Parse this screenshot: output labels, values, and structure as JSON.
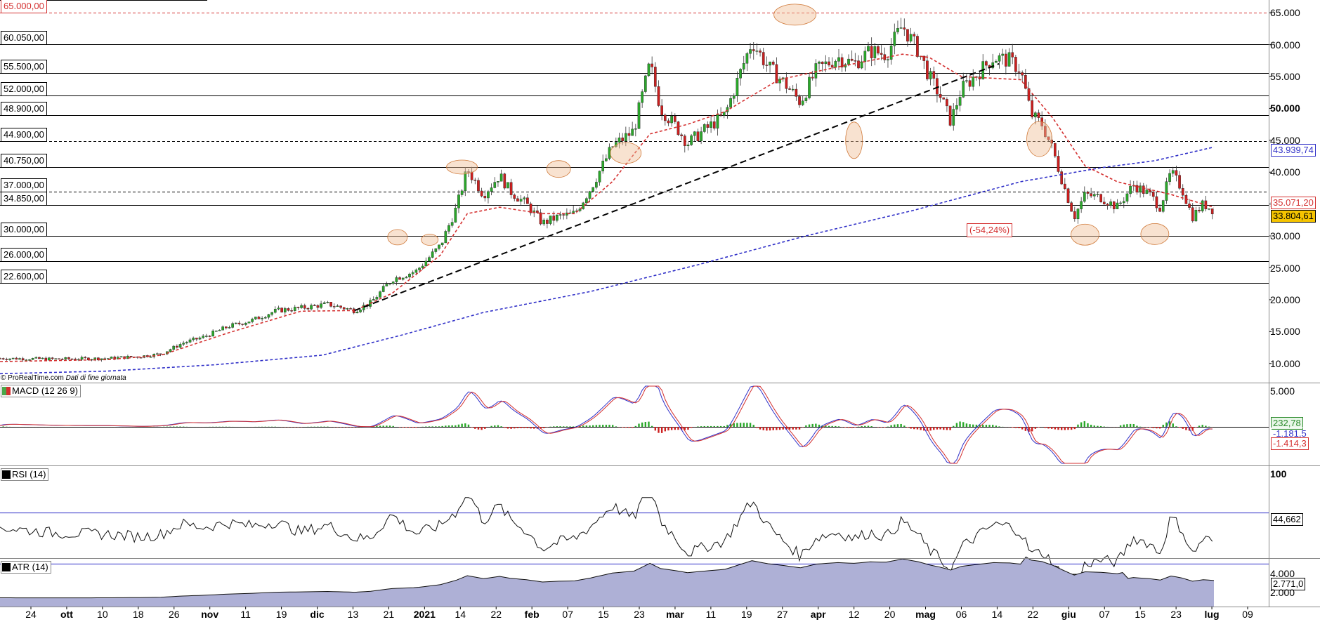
{
  "chart_data": {
    "type": "candlestick",
    "source_note": "© ProRealTime.com",
    "source_note_suffix": "Dati di fine giornata",
    "price_levels": [
      {
        "label": "65.000,00",
        "value": 65000,
        "style": "dashed-red"
      },
      {
        "label": "60.050,00",
        "value": 60050,
        "style": "solid"
      },
      {
        "label": "55.500,00",
        "value": 55500,
        "style": "solid"
      },
      {
        "label": "52.000,00",
        "value": 52000,
        "style": "solid"
      },
      {
        "label": "48.900,00",
        "value": 48900,
        "style": "solid"
      },
      {
        "label": "44.900,00",
        "value": 44900,
        "style": "dashed"
      },
      {
        "label": "40.750,00",
        "value": 40750,
        "style": "solid"
      },
      {
        "label": "37.000,00",
        "value": 37000,
        "style": "dashed"
      },
      {
        "label": "34.850,00",
        "value": 34850,
        "style": "solid"
      },
      {
        "label": "30.000,00",
        "value": 30000,
        "style": "solid"
      },
      {
        "label": "26.000,00",
        "value": 26000,
        "style": "solid"
      },
      {
        "label": "22.600,00",
        "value": 22600,
        "style": "solid"
      }
    ],
    "y_axis_ticks": [
      "65.000",
      "60.000",
      "55.000",
      "50.000",
      "45.000",
      "40.000",
      "35.000",
      "30.000",
      "25.000",
      "20.000",
      "15.000",
      "10.000"
    ],
    "y_axis_bold_tick": "50.000",
    "ylim": [
      7000,
      67000
    ],
    "x_axis_ticks": [
      {
        "label": "24",
        "bold": false
      },
      {
        "label": "ott",
        "bold": true
      },
      {
        "label": "10",
        "bold": false
      },
      {
        "label": "18",
        "bold": false
      },
      {
        "label": "26",
        "bold": false
      },
      {
        "label": "nov",
        "bold": true
      },
      {
        "label": "11",
        "bold": false
      },
      {
        "label": "19",
        "bold": false
      },
      {
        "label": "dic",
        "bold": true
      },
      {
        "label": "13",
        "bold": false
      },
      {
        "label": "21",
        "bold": false
      },
      {
        "label": "2021",
        "bold": true
      },
      {
        "label": "14",
        "bold": false
      },
      {
        "label": "22",
        "bold": false
      },
      {
        "label": "feb",
        "bold": true
      },
      {
        "label": "07",
        "bold": false
      },
      {
        "label": "15",
        "bold": false
      },
      {
        "label": "23",
        "bold": false
      },
      {
        "label": "mar",
        "bold": true
      },
      {
        "label": "11",
        "bold": false
      },
      {
        "label": "19",
        "bold": false
      },
      {
        "label": "27",
        "bold": false
      },
      {
        "label": "apr",
        "bold": true
      },
      {
        "label": "12",
        "bold": false
      },
      {
        "label": "20",
        "bold": false
      },
      {
        "label": "mag",
        "bold": true
      },
      {
        "label": "06",
        "bold": false
      },
      {
        "label": "14",
        "bold": false
      },
      {
        "label": "22",
        "bold": false
      },
      {
        "label": "giu",
        "bold": true
      },
      {
        "label": "07",
        "bold": false
      },
      {
        "label": "15",
        "bold": false
      },
      {
        "label": "23",
        "bold": false
      },
      {
        "label": "lug",
        "bold": true
      },
      {
        "label": "09",
        "bold": false
      }
    ],
    "price_path": [
      [
        0,
        10800
      ],
      [
        20,
        10700
      ],
      [
        40,
        10800
      ],
      [
        52,
        11100
      ],
      [
        60,
        11500
      ],
      [
        68,
        13200
      ],
      [
        76,
        14200
      ],
      [
        85,
        15800
      ],
      [
        94,
        16800
      ],
      [
        103,
        18300
      ],
      [
        112,
        18700
      ],
      [
        122,
        19300
      ],
      [
        132,
        18300
      ],
      [
        138,
        19500
      ],
      [
        146,
        23200
      ],
      [
        155,
        24500
      ],
      [
        164,
        28500
      ],
      [
        170,
        34500
      ],
      [
        174,
        40500
      ],
      [
        180,
        36500
      ],
      [
        186,
        39500
      ],
      [
        190,
        37000
      ],
      [
        196,
        35000
      ],
      [
        202,
        32000
      ],
      [
        208,
        33000
      ],
      [
        214,
        33500
      ],
      [
        220,
        37500
      ],
      [
        228,
        44000
      ],
      [
        236,
        46500
      ],
      [
        242,
        57000
      ],
      [
        246,
        50000
      ],
      [
        252,
        47000
      ],
      [
        256,
        44500
      ],
      [
        262,
        46500
      ],
      [
        270,
        49000
      ],
      [
        276,
        56000
      ],
      [
        280,
        60500
      ],
      [
        286,
        56500
      ],
      [
        292,
        54000
      ],
      [
        298,
        51000
      ],
      [
        304,
        56000
      ],
      [
        312,
        58000
      ],
      [
        318,
        57000
      ],
      [
        324,
        59000
      ],
      [
        330,
        58500
      ],
      [
        336,
        63000
      ],
      [
        342,
        59000
      ],
      [
        346,
        55000
      ],
      [
        350,
        52000
      ],
      [
        354,
        48000
      ],
      [
        358,
        53000
      ],
      [
        364,
        55500
      ],
      [
        370,
        58000
      ],
      [
        376,
        57500
      ],
      [
        380,
        56000
      ],
      [
        384,
        49000
      ],
      [
        388,
        47500
      ],
      [
        392,
        43500
      ],
      [
        396,
        38000
      ],
      [
        400,
        33000
      ],
      [
        404,
        36500
      ],
      [
        410,
        36000
      ],
      [
        416,
        34500
      ],
      [
        422,
        38000
      ],
      [
        428,
        36500
      ],
      [
        432,
        34500
      ],
      [
        436,
        40000
      ],
      [
        440,
        37500
      ],
      [
        444,
        33000
      ],
      [
        448,
        35000
      ],
      [
        452,
        34000
      ]
    ],
    "ema20_path": [
      [
        0,
        10300
      ],
      [
        40,
        10600
      ],
      [
        60,
        11300
      ],
      [
        85,
        14800
      ],
      [
        112,
        18200
      ],
      [
        132,
        18300
      ],
      [
        146,
        21000
      ],
      [
        164,
        27000
      ],
      [
        174,
        33500
      ],
      [
        186,
        34500
      ],
      [
        202,
        33500
      ],
      [
        214,
        33500
      ],
      [
        228,
        38500
      ],
      [
        242,
        46000
      ],
      [
        256,
        47500
      ],
      [
        270,
        49500
      ],
      [
        290,
        54500
      ],
      [
        312,
        56500
      ],
      [
        336,
        58500
      ],
      [
        346,
        58000
      ],
      [
        358,
        55000
      ],
      [
        380,
        54500
      ],
      [
        392,
        48500
      ],
      [
        404,
        41000
      ],
      [
        416,
        38500
      ],
      [
        436,
        36500
      ],
      [
        452,
        34500
      ]
    ],
    "sma200_path": [
      [
        0,
        8400
      ],
      [
        40,
        8800
      ],
      [
        80,
        9800
      ],
      [
        120,
        11300
      ],
      [
        150,
        14500
      ],
      [
        180,
        18000
      ],
      [
        220,
        21300
      ],
      [
        260,
        25500
      ],
      [
        300,
        30000
      ],
      [
        340,
        34000
      ],
      [
        380,
        38500
      ],
      [
        410,
        40700
      ],
      [
        430,
        41800
      ],
      [
        452,
        43939
      ]
    ],
    "trendline": {
      "from": [
        132,
        18300
      ],
      "to": [
        372,
        57000
      ]
    },
    "annotations": [
      {
        "label": "(-54,24%)"
      }
    ],
    "price_tags": [
      {
        "label": "43.939,74",
        "value": 43939.74,
        "color": "#3030c8"
      },
      {
        "label": "35.071,20",
        "value": 35071.2,
        "color": "#d43030"
      },
      {
        "label": "33.804,61",
        "value": 33804.61,
        "color": "#000000",
        "bg": "#f5c400"
      }
    ],
    "macd": {
      "label": "MACD (12 26 9)",
      "ticks": [
        "5.000"
      ],
      "tags": [
        {
          "label": "232,78",
          "color": "#2a8a2a"
        },
        {
          "label": "-1.181,5",
          "color": "#3030c8"
        },
        {
          "label": "-1.414,3",
          "color": "#d43030"
        }
      ]
    },
    "rsi": {
      "label": "RSI (14)",
      "ticks": [
        "100"
      ],
      "tag": "44,662",
      "levels": [
        70,
        30
      ]
    },
    "atr": {
      "label": "ATR (14)",
      "ticks": [
        "4.000",
        "2.000"
      ],
      "tag": "2.771,0"
    }
  }
}
